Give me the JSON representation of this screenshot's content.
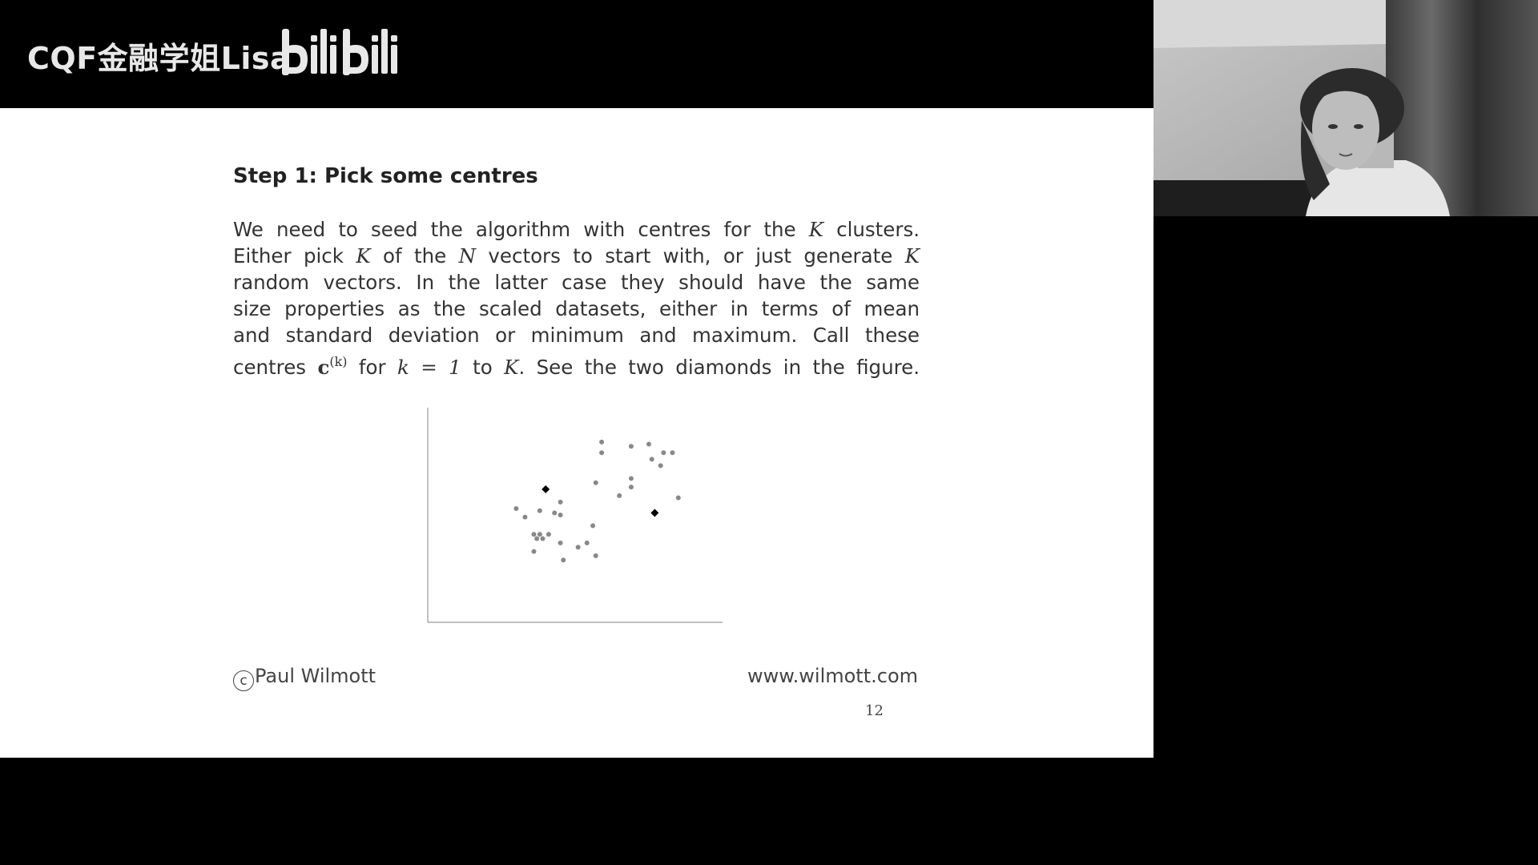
{
  "overlay": {
    "channel": "CQF金融学姐Lisa",
    "platform_logo": "bilibili"
  },
  "slide": {
    "heading": "Step 1: Pick some centres",
    "body": {
      "line1_a": "We need to seed the algorithm with centres for the ",
      "line1_b": " clusters.",
      "line2_a": "Either pick ",
      "line2_b": " of the ",
      "line2_c": " vectors to start with, or just generate ",
      "line3": "random vectors. In the latter case they should have the same",
      "line4": "size properties as the scaled datasets, either in terms of mean",
      "line5": "and standard deviation or minimum and maximum. Call these",
      "line6_a": "centres ",
      "line6_b": " for ",
      "line6_c": " to ",
      "line6_d": ". See the two diamonds in the figure.",
      "sym_K": "K",
      "sym_N": "N",
      "sym_c": "c",
      "sym_k_sup": "(k)",
      "sym_k_eq": "k = 1"
    },
    "footer_left": "Paul Wilmott",
    "copyright_symbol": "c",
    "footer_right": "www.wilmott.com",
    "page_number": "12"
  },
  "chart_data": {
    "type": "scatter",
    "title": "",
    "xlabel": "",
    "ylabel": "",
    "xlim": [
      0,
      10
    ],
    "ylim": [
      0,
      10
    ],
    "axes": "left-and-bottom",
    "series": [
      {
        "marker": "dot",
        "color": "#888888",
        "points": [
          [
            3.0,
            5.3
          ],
          [
            3.3,
            4.9
          ],
          [
            3.8,
            5.2
          ],
          [
            4.3,
            5.1
          ],
          [
            4.5,
            5.6
          ],
          [
            3.8,
            4.1
          ],
          [
            3.6,
            4.1
          ],
          [
            4.1,
            4.1
          ],
          [
            3.7,
            3.9
          ],
          [
            3.9,
            3.9
          ],
          [
            3.6,
            3.3
          ],
          [
            4.5,
            3.7
          ],
          [
            4.6,
            2.9
          ],
          [
            5.1,
            3.5
          ],
          [
            5.4,
            3.7
          ],
          [
            5.6,
            4.5
          ],
          [
            5.7,
            3.1
          ],
          [
            4.5,
            5.0
          ],
          [
            5.7,
            6.5
          ],
          [
            5.9,
            8.4
          ],
          [
            5.9,
            7.9
          ],
          [
            6.5,
            5.9
          ],
          [
            6.9,
            6.3
          ],
          [
            6.9,
            6.7
          ],
          [
            6.9,
            8.2
          ],
          [
            7.5,
            8.3
          ],
          [
            7.6,
            7.6
          ],
          [
            7.9,
            7.3
          ],
          [
            8.0,
            7.9
          ],
          [
            8.3,
            7.9
          ],
          [
            8.5,
            5.8
          ]
        ]
      },
      {
        "marker": "diamond",
        "color": "#000000",
        "points": [
          [
            4.0,
            6.2
          ],
          [
            7.7,
            5.1
          ]
        ]
      }
    ]
  }
}
